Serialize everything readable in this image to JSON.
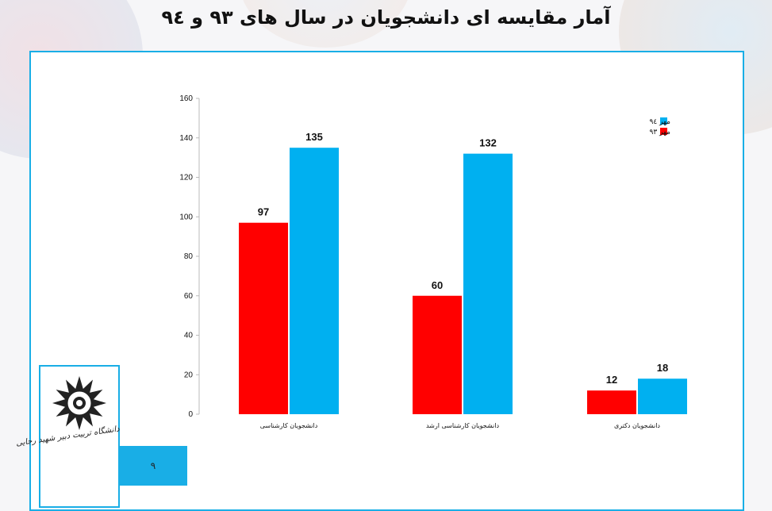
{
  "slide": {
    "title": "آمار مقایسه ای دانشجویان در سال های ۹۳ و ۹٤",
    "page_number": "۹",
    "logo_text": "دانشگاه تربیت دبیر شهید رجایی"
  },
  "colors": {
    "accent": "#19aee6",
    "series_93": "#ff0000",
    "series_94": "#00b0f0"
  },
  "chart_data": {
    "type": "bar",
    "categories": [
      "دانشجویان کارشناسی",
      "دانشجویان کارشناسی ارشد",
      "دانشجویان دکتری"
    ],
    "series": [
      {
        "name": "مهر ۹۳",
        "values": [
          97,
          60,
          12
        ],
        "color": "#ff0000"
      },
      {
        "name": "مهر ۹٤",
        "values": [
          135,
          132,
          18
        ],
        "color": "#00b0f0"
      }
    ],
    "legend_order": [
      "مهر ۹٤",
      "مهر ۹۳"
    ],
    "ylim": [
      0,
      160
    ],
    "yticks": [
      0,
      20,
      40,
      60,
      80,
      100,
      120,
      140,
      160
    ],
    "data_labels": true,
    "grid": false,
    "legend_position": "top-right"
  }
}
